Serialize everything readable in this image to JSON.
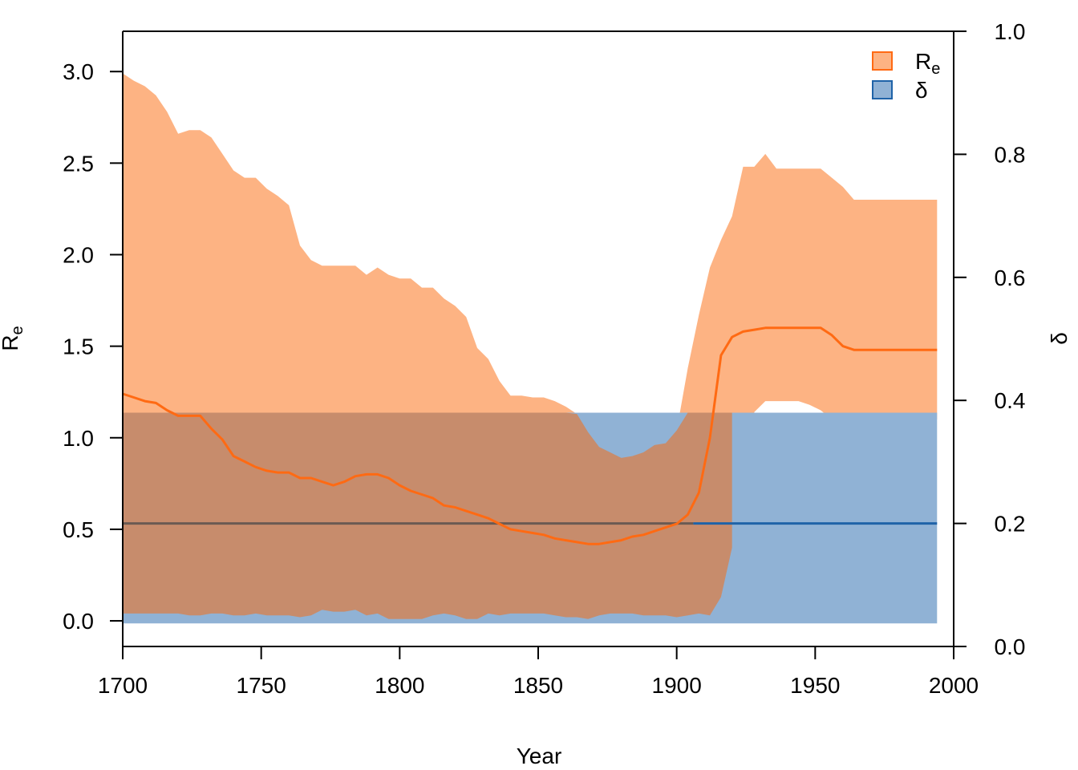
{
  "chart_data": {
    "type": "area",
    "xlabel": "Year",
    "ylabel_left_main": "R",
    "ylabel_left_sub": "e",
    "ylabel_right": "δ",
    "xlim": [
      1700,
      2000
    ],
    "ylim_left": [
      -0.14,
      3.22
    ],
    "ylim_right": [
      0.0,
      1.0
    ],
    "xticks": [
      "1700",
      "1750",
      "1800",
      "1850",
      "1900",
      "1950",
      "2000"
    ],
    "yticks_left": [
      "0.0",
      "0.5",
      "1.0",
      "1.5",
      "2.0",
      "2.5",
      "3.0"
    ],
    "yticks_right": [
      "0.0",
      "0.2",
      "0.4",
      "0.6",
      "0.8",
      "1.0"
    ],
    "legend": {
      "position": "top-right",
      "items": [
        {
          "main": "R",
          "sub": "e",
          "color": "#fdb383"
        },
        {
          "main": "δ",
          "sub": "",
          "color": "#90b2d5"
        }
      ]
    },
    "colors": {
      "re_fill": "#fdb383",
      "re_line": "#ff6a13",
      "re_legend_border": "#ff6a13",
      "delta_fill": "#90b2d5",
      "delta_line": "#1f63a8",
      "overlap_fill": "#c78c6c",
      "overlap_line": "#6b5a53"
    },
    "re_series": {
      "name": "Re",
      "x": [
        1700,
        1704,
        1708,
        1712,
        1716,
        1720,
        1724,
        1728,
        1732,
        1736,
        1740,
        1744,
        1748,
        1752,
        1756,
        1760,
        1764,
        1768,
        1772,
        1776,
        1780,
        1784,
        1788,
        1792,
        1796,
        1800,
        1804,
        1808,
        1812,
        1816,
        1820,
        1824,
        1828,
        1832,
        1836,
        1840,
        1844,
        1848,
        1852,
        1856,
        1860,
        1864,
        1868,
        1872,
        1876,
        1880,
        1884,
        1888,
        1892,
        1896,
        1900,
        1904,
        1908,
        1912,
        1916,
        1920,
        1924,
        1928,
        1932,
        1936,
        1940,
        1944,
        1948,
        1952,
        1956,
        1960,
        1964,
        1968,
        1972,
        1976,
        1980,
        1984,
        1988,
        1992,
        1994
      ],
      "upper": [
        2.99,
        2.95,
        2.92,
        2.87,
        2.78,
        2.66,
        2.68,
        2.68,
        2.64,
        2.55,
        2.46,
        2.42,
        2.42,
        2.36,
        2.32,
        2.27,
        2.05,
        1.97,
        1.94,
        1.94,
        1.94,
        1.94,
        1.89,
        1.93,
        1.89,
        1.87,
        1.87,
        1.82,
        1.82,
        1.76,
        1.72,
        1.66,
        1.49,
        1.43,
        1.31,
        1.23,
        1.23,
        1.22,
        1.22,
        1.2,
        1.17,
        1.13,
        1.03,
        0.95,
        0.92,
        0.89,
        0.9,
        0.92,
        0.96,
        0.97,
        1.04,
        1.38,
        1.67,
        1.93,
        2.08,
        2.21,
        2.48,
        2.48,
        2.55,
        2.47,
        2.47,
        2.47,
        2.47,
        2.47,
        2.42,
        2.37,
        2.3,
        2.3,
        2.3,
        2.3,
        2.3,
        2.3,
        2.3,
        2.3,
        2.3
      ],
      "lower": [
        0.04,
        0.04,
        0.04,
        0.04,
        0.04,
        0.04,
        0.03,
        0.03,
        0.04,
        0.04,
        0.03,
        0.03,
        0.04,
        0.03,
        0.03,
        0.03,
        0.02,
        0.03,
        0.06,
        0.05,
        0.05,
        0.06,
        0.03,
        0.04,
        0.01,
        0.01,
        0.01,
        0.01,
        0.03,
        0.04,
        0.03,
        0.01,
        0.01,
        0.04,
        0.03,
        0.04,
        0.04,
        0.04,
        0.04,
        0.03,
        0.02,
        0.02,
        0.01,
        0.03,
        0.04,
        0.04,
        0.04,
        0.03,
        0.03,
        0.03,
        0.02,
        0.03,
        0.04,
        0.03,
        0.13,
        0.4,
        0.6,
        1.14,
        1.2,
        1.2,
        1.2,
        1.2,
        1.18,
        1.15,
        1.1,
        1.1,
        1.1,
        1.1,
        1.1,
        1.1,
        1.1,
        1.1,
        1.1,
        1.1,
        1.1
      ],
      "mean": [
        1.24,
        1.22,
        1.2,
        1.19,
        1.15,
        1.12,
        1.12,
        1.12,
        1.05,
        0.99,
        0.9,
        0.87,
        0.84,
        0.82,
        0.81,
        0.81,
        0.78,
        0.78,
        0.76,
        0.74,
        0.76,
        0.79,
        0.8,
        0.8,
        0.78,
        0.74,
        0.71,
        0.69,
        0.67,
        0.63,
        0.62,
        0.6,
        0.58,
        0.56,
        0.53,
        0.5,
        0.49,
        0.48,
        0.47,
        0.45,
        0.44,
        0.43,
        0.42,
        0.42,
        0.43,
        0.44,
        0.46,
        0.47,
        0.49,
        0.51,
        0.53,
        0.58,
        0.7,
        1.0,
        1.45,
        1.55,
        1.58,
        1.59,
        1.6,
        1.6,
        1.6,
        1.6,
        1.6,
        1.6,
        1.56,
        1.5,
        1.48,
        1.48,
        1.48,
        1.48,
        1.48,
        1.48,
        1.48,
        1.48,
        1.48
      ]
    },
    "delta_series": {
      "name": "δ",
      "x": [
        1700,
        1994
      ],
      "lower": 0.0375,
      "upper": 0.38,
      "mean": 0.2
    },
    "overlap_end_x": 1920
  }
}
